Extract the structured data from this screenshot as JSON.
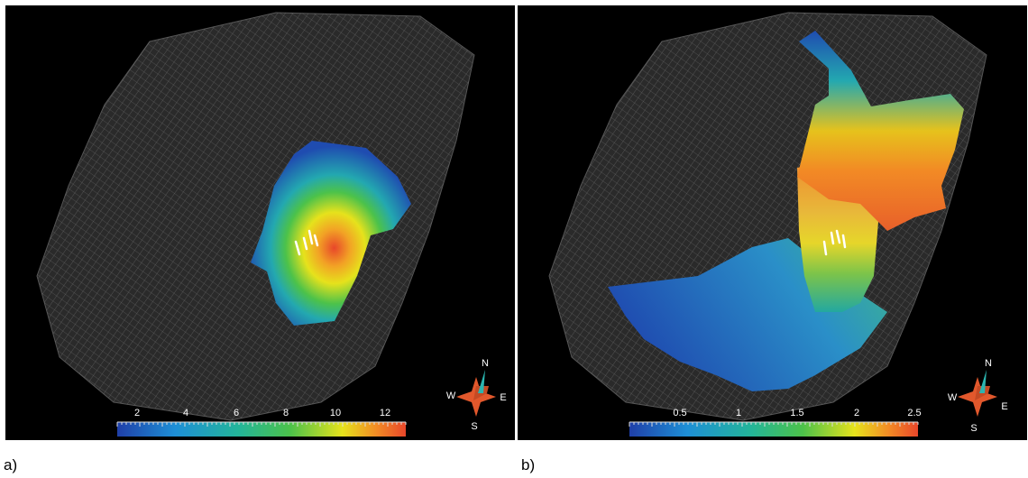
{
  "panels": [
    {
      "caption": "a)",
      "colorbar": {
        "ticks": [
          "2",
          "4",
          "6",
          "8",
          "10",
          "12"
        ]
      },
      "compass": {
        "n": "N",
        "e": "E",
        "s": "S",
        "w": "W"
      }
    },
    {
      "caption": "b)",
      "colorbar": {
        "ticks": [
          "0.5",
          "1",
          "1.5",
          "2",
          "2.5"
        ]
      },
      "compass": {
        "n": "N",
        "e": "E",
        "s": "S",
        "w": "W"
      }
    }
  ],
  "colors": {
    "background": "#000000",
    "mesh": "#8a8a8a",
    "scale": [
      "#1f3fa8",
      "#1e8fd6",
      "#23b59a",
      "#4cc24a",
      "#e6e21c",
      "#f28a25",
      "#e8472a"
    ],
    "compass_body": "#e2582c",
    "compass_needle": "#2bb5b0"
  }
}
